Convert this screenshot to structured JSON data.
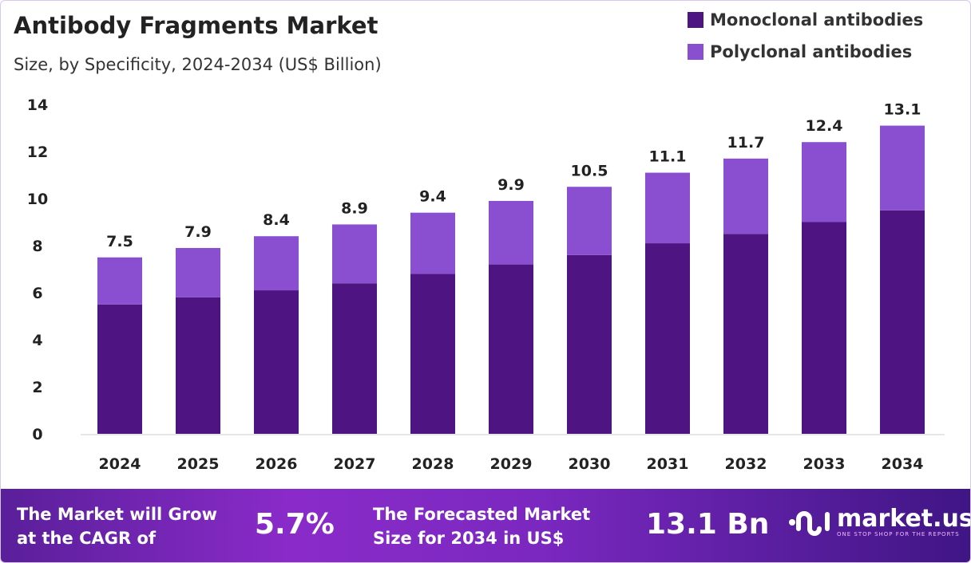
{
  "chart_data": {
    "type": "bar",
    "stacked": true,
    "title": "Antibody Fragments Market",
    "subtitle": "Size, by Specificity, 2024-2034 (US$ Billion)",
    "categories": [
      "2024",
      "2025",
      "2026",
      "2027",
      "2028",
      "2029",
      "2030",
      "2031",
      "2032",
      "2033",
      "2034"
    ],
    "series": [
      {
        "name": "Monoclonal antibodies",
        "color": "#4e1582",
        "values": [
          5.5,
          5.8,
          6.1,
          6.4,
          6.8,
          7.2,
          7.6,
          8.1,
          8.5,
          9.0,
          9.5
        ]
      },
      {
        "name": "Polyclonal antibodies",
        "color": "#8a4fd0",
        "values": [
          2.0,
          2.1,
          2.3,
          2.5,
          2.6,
          2.7,
          2.9,
          3.0,
          3.2,
          3.4,
          3.6
        ]
      }
    ],
    "totals": [
      "7.5",
      "7.9",
      "8.4",
      "8.9",
      "9.4",
      "9.9",
      "10.5",
      "11.1",
      "11.7",
      "12.4",
      "13.1"
    ],
    "yticks": [
      "0",
      "2",
      "4",
      "6",
      "8",
      "10",
      "12",
      "14"
    ],
    "ylim": [
      0,
      14
    ],
    "grid": false,
    "legend_position": "top-right"
  },
  "footer": {
    "cagr_text_1": "The Market will Grow",
    "cagr_text_2": "at the CAGR of",
    "cagr_value": "5.7%",
    "forecast_text_1": "The Forecasted Market",
    "forecast_text_2": "Size for 2034 in US$",
    "forecast_value": "13.1 Bn",
    "logo_name": "market.us",
    "logo_tagline": "ONE STOP SHOP FOR THE REPORTS"
  }
}
